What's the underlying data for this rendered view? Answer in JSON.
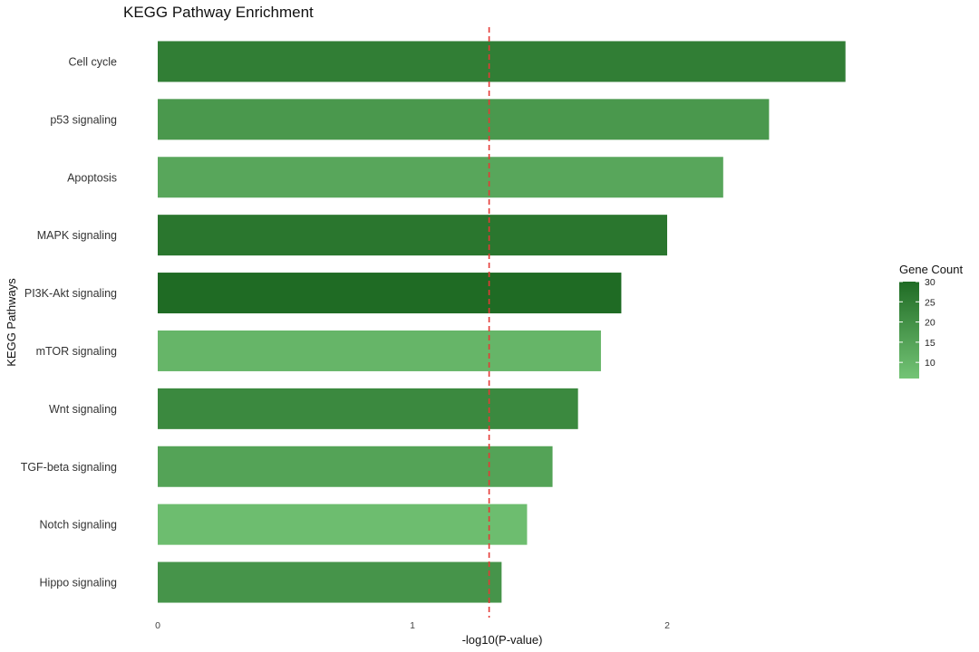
{
  "chart_data": {
    "type": "bar",
    "orientation": "horizontal",
    "title": "KEGG Pathway Enrichment",
    "xlabel": "-log10(P-value)",
    "ylabel": "KEGG Pathways",
    "xlim": [
      0,
      3
    ],
    "x_ticks": [
      "0",
      "1",
      "2"
    ],
    "x_tick_values": [
      0,
      1,
      2
    ],
    "threshold_line": 1.301,
    "threshold_color": "#e53935",
    "categories": [
      "Cell cycle",
      "p53 signaling",
      "Apoptosis",
      "MAPK signaling",
      "PI3K-Akt signaling",
      "mTOR signaling",
      "Wnt signaling",
      "TGF-beta signaling",
      "Notch signaling",
      "Hippo signaling"
    ],
    "values": [
      2.7,
      2.4,
      2.22,
      2.0,
      1.82,
      1.74,
      1.65,
      1.55,
      1.45,
      1.35
    ],
    "gene_counts": [
      25,
      18,
      14,
      27,
      30,
      10,
      22,
      15,
      8,
      19
    ],
    "legend": {
      "title": "Gene Count",
      "ticks": [
        "30",
        "25",
        "20",
        "15",
        "10"
      ],
      "tick_values": [
        30,
        25,
        20,
        15,
        10
      ],
      "range": [
        6,
        30
      ],
      "color_low": "#74c476",
      "color_high": "#1f6b24",
      "placement": "right"
    },
    "grid": false
  }
}
